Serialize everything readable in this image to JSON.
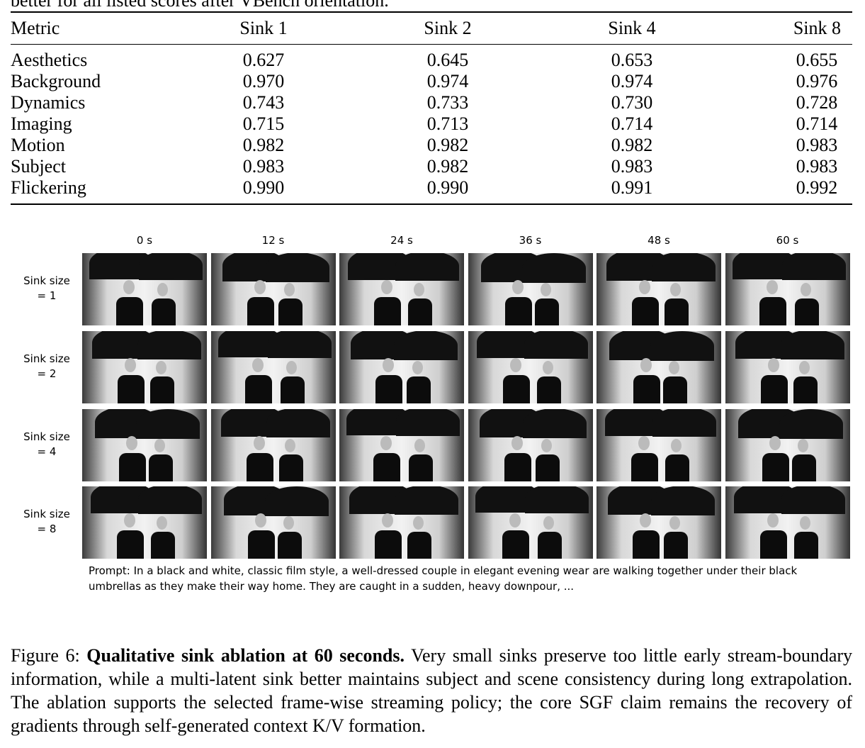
{
  "header_text": "better for all listed scores after VBench orientation.",
  "table": {
    "columns": [
      "Metric",
      "Sink 1",
      "Sink 2",
      "Sink 4",
      "Sink 8"
    ],
    "rows": [
      [
        "Aesthetics",
        "0.627",
        "0.645",
        "0.653",
        "0.655"
      ],
      [
        "Background",
        "0.970",
        "0.974",
        "0.974",
        "0.976"
      ],
      [
        "Dynamics",
        "0.743",
        "0.733",
        "0.730",
        "0.728"
      ],
      [
        "Imaging",
        "0.715",
        "0.713",
        "0.714",
        "0.714"
      ],
      [
        "Motion",
        "0.982",
        "0.982",
        "0.982",
        "0.983"
      ],
      [
        "Subject",
        "0.983",
        "0.982",
        "0.983",
        "0.983"
      ],
      [
        "Flickering",
        "0.990",
        "0.990",
        "0.991",
        "0.992"
      ]
    ]
  },
  "figure": {
    "column_labels": [
      "0 s",
      "12 s",
      "24 s",
      "36 s",
      "48 s",
      "60 s"
    ],
    "row_labels": [
      "Sink size = 1",
      "Sink size = 2",
      "Sink size = 4",
      "Sink size = 8"
    ],
    "prompt": "Prompt:  In a black and white, classic film style, a well-dressed couple in elegant evening wear are walking together under their black umbrellas as they make their way home. They are caught in a sudden, heavy downpour, ..."
  },
  "caption": {
    "label": "Figure 6:",
    "title": "Qualitative sink ablation at 60 seconds.",
    "text": "Very small sinks preserve too little early stream-boundary information, while a multi-latent sink better maintains subject and scene consistency during long extrapolation. The ablation supports the selected frame-wise streaming policy; the core SGF claim remains the recovery of gradients through self-generated context K/V formation."
  }
}
